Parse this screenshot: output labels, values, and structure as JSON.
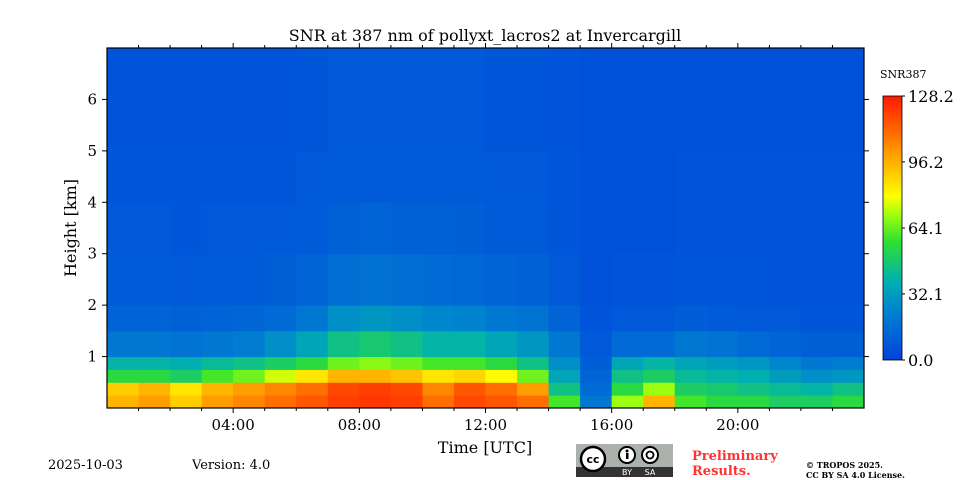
{
  "chart_data": {
    "type": "heatmap",
    "title": "SNR at 387 nm of pollyxt_lacros2 at Invercargill",
    "xlabel": "Time [UTC]",
    "ylabel": "Height [km]",
    "xlim_hours": [
      0,
      24
    ],
    "ylim_km": [
      0,
      7
    ],
    "xticks": [
      {
        "h": 4,
        "label": "04:00"
      },
      {
        "h": 8,
        "label": "08:00"
      },
      {
        "h": 12,
        "label": "12:00"
      },
      {
        "h": 16,
        "label": "16:00"
      },
      {
        "h": 20,
        "label": "20:00"
      }
    ],
    "yticks": [
      {
        "v": 1,
        "label": "1"
      },
      {
        "v": 2,
        "label": "2"
      },
      {
        "v": 3,
        "label": "3"
      },
      {
        "v": 4,
        "label": "4"
      },
      {
        "v": 5,
        "label": "5"
      },
      {
        "v": 6,
        "label": "6"
      }
    ],
    "colorbar": {
      "label": "SNR387",
      "min": 0.0,
      "max": 128.2,
      "ticks": [
        {
          "v": 0.0,
          "label": "0.0"
        },
        {
          "v": 32.1,
          "label": "32.1"
        },
        {
          "v": 64.1,
          "label": "64.1"
        },
        {
          "v": 96.2,
          "label": "96.2"
        },
        {
          "v": 128.2,
          "label": "128.2"
        }
      ]
    },
    "time_bins_hours_start": [
      0,
      1,
      2,
      3,
      4,
      5,
      6,
      7,
      8,
      9,
      10,
      11,
      12,
      13,
      14,
      15,
      16,
      17,
      18,
      19,
      20,
      21,
      22,
      23
    ],
    "height_bin_edges_km": [
      0,
      0.25,
      0.5,
      0.75,
      1,
      1.5,
      2,
      3,
      4,
      5,
      7
    ],
    "values": [
      [
        95,
        90,
        55,
        40,
        20,
        12,
        9,
        8,
        7,
        6
      ],
      [
        100,
        95,
        55,
        40,
        20,
        12,
        9,
        8,
        7,
        6
      ],
      [
        90,
        85,
        50,
        38,
        18,
        11,
        8,
        7,
        7,
        6
      ],
      [
        100,
        95,
        60,
        42,
        20,
        12,
        9,
        8,
        7,
        6
      ],
      [
        105,
        100,
        65,
        45,
        22,
        13,
        9,
        8,
        7,
        6
      ],
      [
        110,
        105,
        75,
        50,
        28,
        15,
        10,
        8,
        7,
        6
      ],
      [
        115,
        110,
        85,
        55,
        35,
        20,
        12,
        9,
        8,
        7
      ],
      [
        120,
        118,
        95,
        65,
        45,
        28,
        16,
        11,
        9,
        8
      ],
      [
        122,
        120,
        95,
        68,
        48,
        30,
        17,
        12,
        9,
        8
      ],
      [
        120,
        118,
        92,
        65,
        45,
        28,
        16,
        11,
        9,
        8
      ],
      [
        110,
        105,
        85,
        60,
        40,
        25,
        15,
        11,
        9,
        8
      ],
      [
        118,
        115,
        88,
        60,
        40,
        24,
        14,
        10,
        9,
        8
      ],
      [
        115,
        110,
        80,
        55,
        35,
        20,
        12,
        9,
        8,
        7
      ],
      [
        110,
        100,
        65,
        45,
        30,
        18,
        11,
        9,
        8,
        7
      ],
      [
        60,
        45,
        35,
        28,
        20,
        12,
        8,
        7,
        7,
        6
      ],
      [
        20,
        15,
        12,
        10,
        8,
        6,
        5,
        5,
        5,
        5
      ],
      [
        70,
        55,
        45,
        35,
        15,
        8,
        6,
        5,
        5,
        5
      ],
      [
        95,
        70,
        50,
        40,
        15,
        8,
        6,
        5,
        5,
        5
      ],
      [
        60,
        50,
        42,
        35,
        20,
        10,
        7,
        6,
        6,
        5
      ],
      [
        55,
        48,
        40,
        32,
        18,
        9,
        7,
        6,
        6,
        5
      ],
      [
        55,
        45,
        38,
        30,
        15,
        8,
        7,
        6,
        6,
        5
      ],
      [
        50,
        42,
        32,
        25,
        12,
        8,
        6,
        6,
        6,
        5
      ],
      [
        50,
        40,
        28,
        20,
        10,
        7,
        6,
        6,
        6,
        5
      ],
      [
        55,
        45,
        30,
        22,
        10,
        7,
        6,
        6,
        6,
        5
      ]
    ]
  },
  "footer": {
    "date": "2025-10-03",
    "version": "Version: 4.0",
    "license_badge": {
      "cc": "cc",
      "by": "BY",
      "sa": "SA"
    },
    "preliminary": "Preliminary Results.",
    "copyright_1": "© TROPOS 2025.",
    "copyright_2": "CC BY SA 4.0 License."
  },
  "colors": {
    "preliminary": "#ff3333",
    "badge_bg": "#aab2ab",
    "badge_bar": "#333333"
  }
}
